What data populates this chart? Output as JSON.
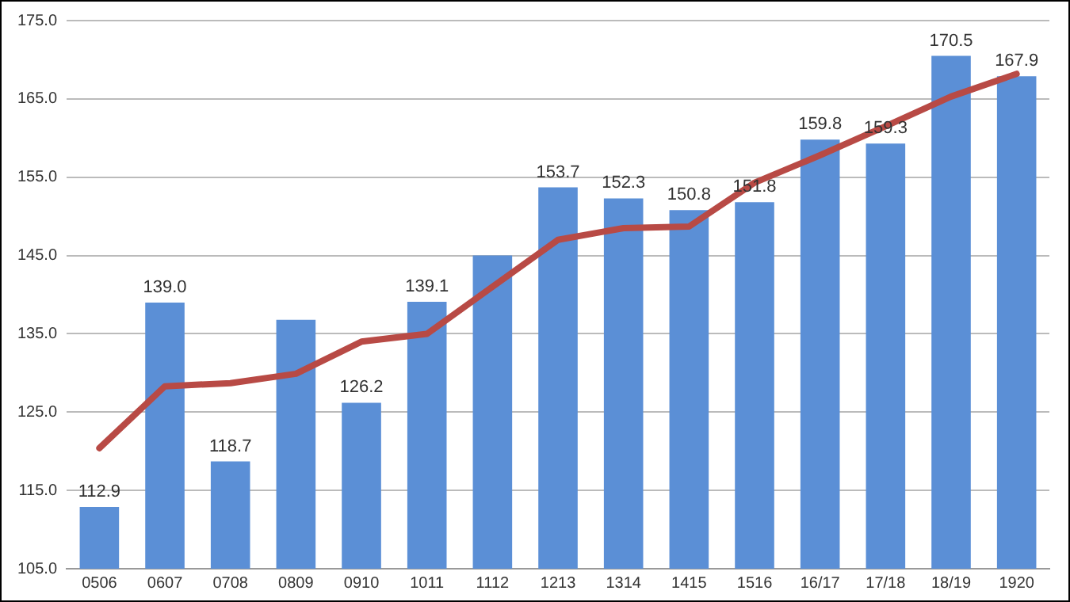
{
  "chart_data": {
    "type": "bar",
    "categories": [
      "0506",
      "0607",
      "0708",
      "0809",
      "0910",
      "1011",
      "1112",
      "1213",
      "1314",
      "1415",
      "1516",
      "16/17",
      "17/18",
      "18/19",
      "1920"
    ],
    "series": [
      {
        "color": "#5b8fd6",
        "values": [
          112.9,
          139.0,
          118.7,
          136.8,
          126.2,
          139.1,
          145.0,
          153.7,
          152.3,
          150.8,
          151.8,
          159.8,
          159.3,
          170.5,
          167.9
        ],
        "value_labels": [
          "112.9",
          "139.0",
          "118.7",
          null,
          "126.2",
          "139.1",
          null,
          "153.7",
          "152.3",
          "150.8",
          "151.8",
          "159.8",
          "159.3",
          "170.5",
          "167.9"
        ]
      },
      {
        "type": "line",
        "color": "#b84a45",
        "values": [
          120.4,
          128.3,
          128.7,
          129.9,
          134.0,
          135.0,
          141.0,
          147.0,
          148.5,
          148.7,
          154.3,
          157.8,
          161.5,
          165.3,
          168.2
        ]
      }
    ],
    "ylim": [
      105,
      175
    ],
    "yticks": [
      {
        "value": 105,
        "label": "105.0"
      },
      {
        "value": 115,
        "label": "115.0"
      },
      {
        "value": 125,
        "label": "125.0"
      },
      {
        "value": 135,
        "label": "135.0"
      },
      {
        "value": 145,
        "label": "145.0"
      },
      {
        "value": 155,
        "label": "155.0"
      },
      {
        "value": 165,
        "label": "165.0"
      },
      {
        "value": 175,
        "label": "175.0"
      }
    ],
    "grid": "y",
    "legend": false,
    "marker": "none",
    "line_style": "solid"
  }
}
